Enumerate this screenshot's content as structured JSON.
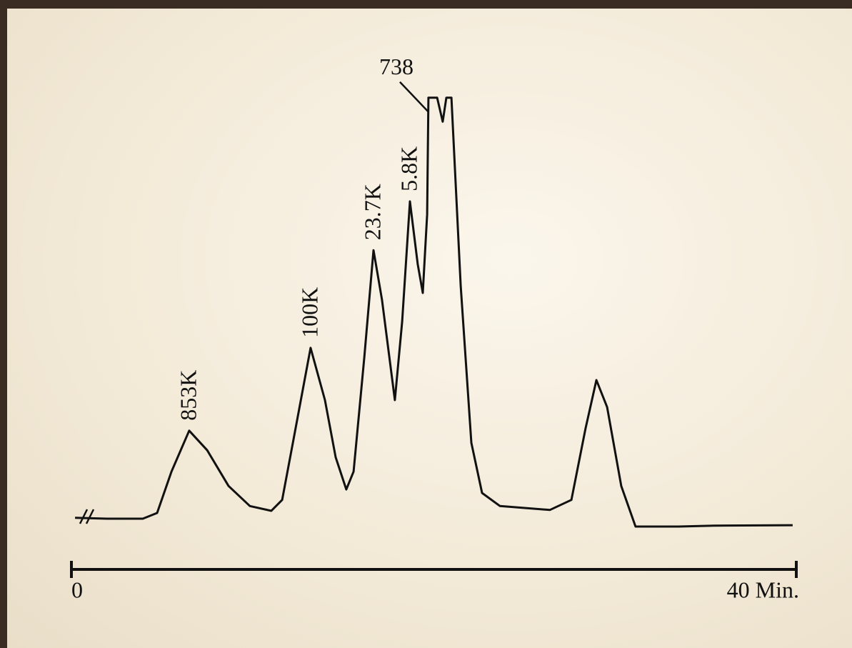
{
  "chart_data": {
    "type": "line",
    "x": [
      0.2,
      1.97,
      3.94,
      4.73,
      5.52,
      6.5,
      7.49,
      8.67,
      9.85,
      11.03,
      11.63,
      12.22,
      13.2,
      13.99,
      14.58,
      15.17,
      15.57,
      16.16,
      16.67,
      17.14,
      17.85,
      18.25,
      18.68,
      19.11,
      19.39,
      19.63,
      19.7,
      20.18,
      20.49,
      20.69,
      20.97,
      21.48,
      22.07,
      22.66,
      23.65,
      26.4,
      27.59,
      28.37,
      28.97,
      29.56,
      30.34,
      31.13,
      33.5,
      35.47,
      39.8
    ],
    "series": [
      {
        "color": "#111111",
        "values": [
          2.5,
          2.3,
          2.3,
          3.6,
          13.1,
          22.5,
          18.0,
          9.8,
          5.2,
          4.1,
          6.6,
          19.7,
          41.5,
          29.5,
          16.4,
          9.0,
          13.1,
          39.3,
          63.9,
          52.5,
          29.5,
          47.5,
          75.1,
          60.7,
          54.1,
          72.1,
          98.9,
          98.9,
          93.4,
          98.9,
          98.9,
          55.7,
          19.7,
          8.2,
          5.2,
          4.3,
          6.6,
          23.0,
          34.1,
          27.9,
          9.8,
          0.5,
          0.5,
          0.7,
          0.8
        ]
      }
    ],
    "xlim": [
      0,
      40
    ],
    "xticks": [
      0,
      {
        "value": 40,
        "label": "40 Min."
      }
    ],
    "ylim": [
      0,
      100
    ],
    "annotations": [
      {
        "text": "853K",
        "x": 6.5,
        "y": 22.5,
        "orientation": "vertical"
      },
      {
        "text": "100K",
        "x": 13.2,
        "y": 41.5,
        "orientation": "vertical"
      },
      {
        "text": "23.7K",
        "x": 16.67,
        "y": 63.9,
        "orientation": "vertical"
      },
      {
        "text": "5.8K",
        "x": 18.68,
        "y": 75.1,
        "orientation": "vertical"
      },
      {
        "text": "738",
        "x": 19.9,
        "y": 98.9,
        "orientation": "horizontal"
      }
    ]
  }
}
